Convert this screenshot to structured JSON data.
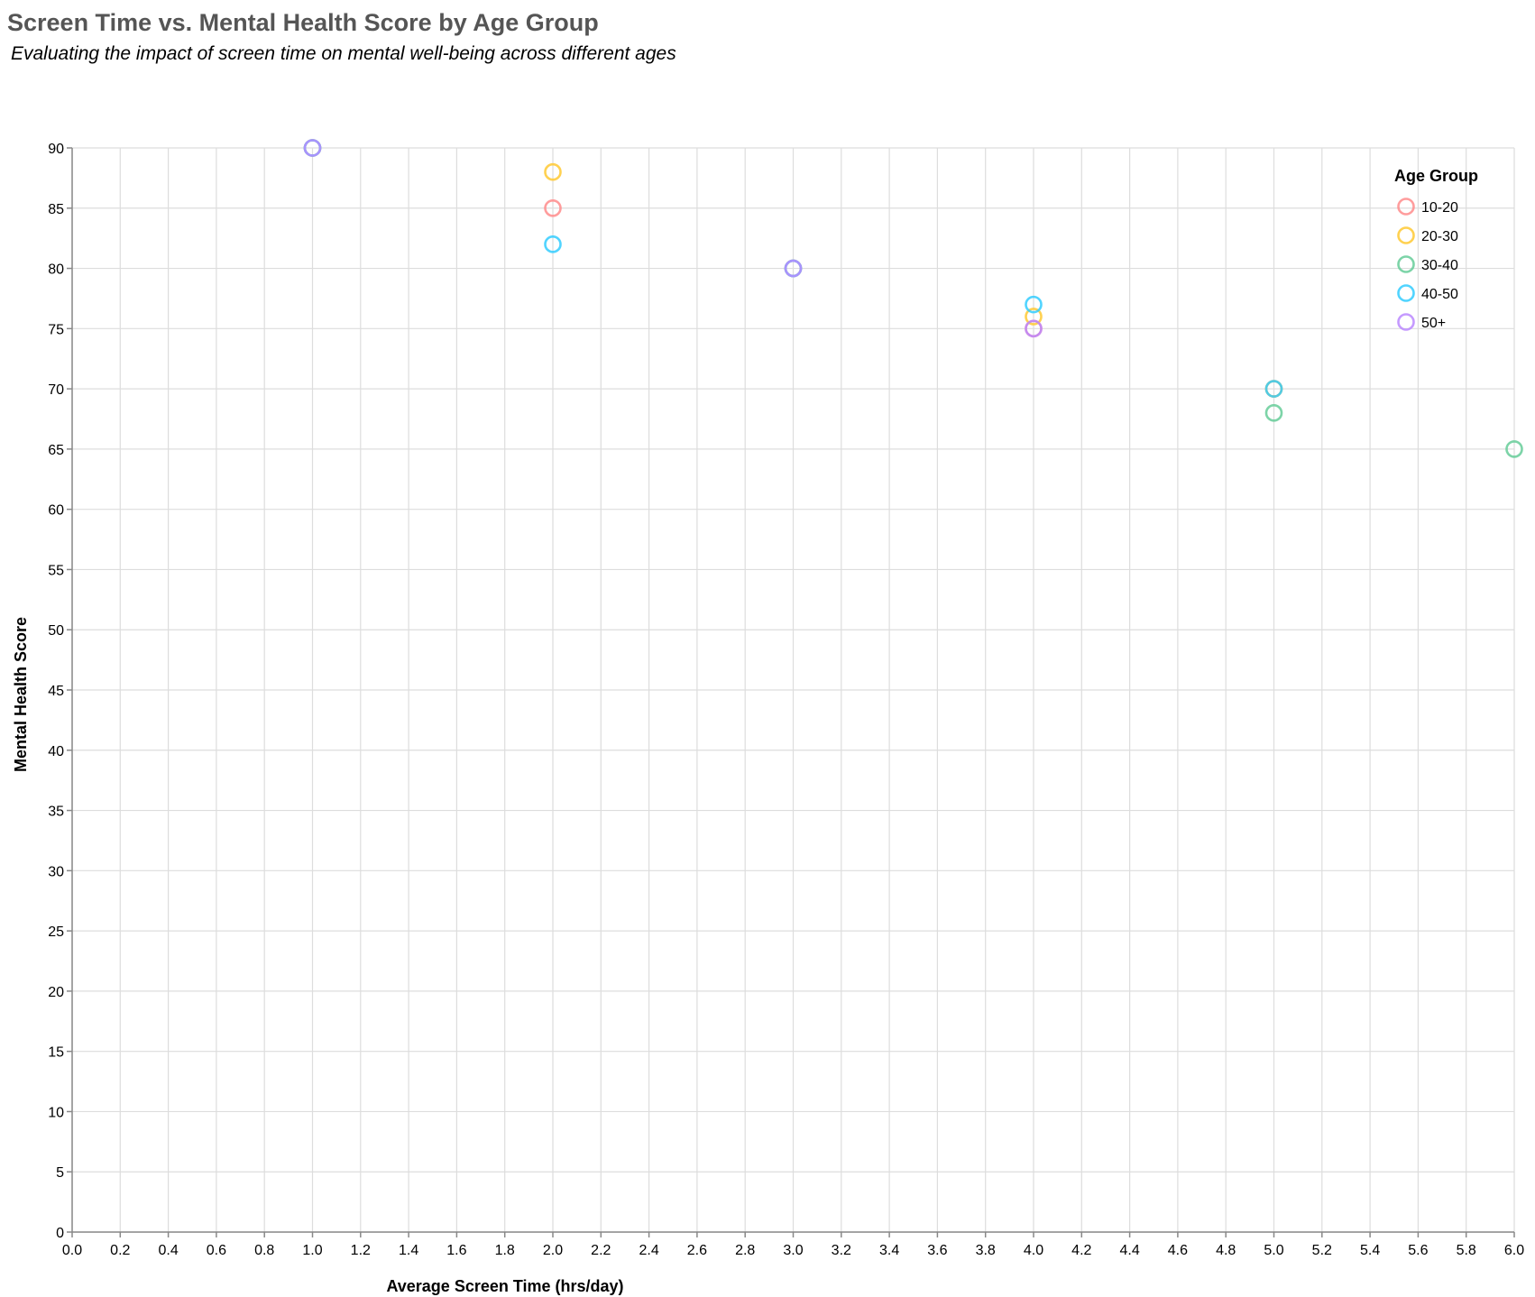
{
  "chart_data": {
    "type": "scatter",
    "title": "Screen Time vs. Mental Health Score by Age Group",
    "subtitle": "Evaluating the impact of screen time on mental well-being across different ages",
    "xlabel": "Average Screen Time (hrs/day)",
    "ylabel": "Mental Health Score",
    "xlim": [
      0,
      6
    ],
    "ylim": [
      0,
      90
    ],
    "x_ticks": [
      "0.0",
      "0.2",
      "0.4",
      "0.6",
      "0.8",
      "1.0",
      "1.2",
      "1.4",
      "1.6",
      "1.8",
      "2.0",
      "2.2",
      "2.4",
      "2.6",
      "2.8",
      "3.0",
      "3.2",
      "3.4",
      "3.6",
      "3.8",
      "4.0",
      "4.2",
      "4.4",
      "4.6",
      "4.8",
      "5.0",
      "5.2",
      "5.4",
      "5.6",
      "5.8",
      "6.0"
    ],
    "y_ticks": [
      "0",
      "5",
      "10",
      "15",
      "20",
      "25",
      "30",
      "35",
      "40",
      "45",
      "50",
      "55",
      "60",
      "65",
      "70",
      "75",
      "80",
      "85",
      "90"
    ],
    "grid": true,
    "legend_title": "Age Group",
    "legend_position": "top-right",
    "marker": "open-circle",
    "series": [
      {
        "name": "10-20",
        "color": "#ff8c8c",
        "points": [
          {
            "x": 1,
            "y": 90
          },
          {
            "x": 2,
            "y": 85
          },
          {
            "x": 3,
            "y": 80
          },
          {
            "x": 4,
            "y": 75
          },
          {
            "x": 5,
            "y": 70
          }
        ]
      },
      {
        "name": "20-30",
        "color": "#ffc933",
        "points": [
          {
            "x": 1,
            "y": 90
          },
          {
            "x": 2,
            "y": 88
          },
          {
            "x": 3,
            "y": 80
          },
          {
            "x": 4,
            "y": 76
          },
          {
            "x": 5,
            "y": 70
          }
        ]
      },
      {
        "name": "30-40",
        "color": "#66cc99",
        "points": [
          {
            "x": 1,
            "y": 90
          },
          {
            "x": 3,
            "y": 80
          },
          {
            "x": 5,
            "y": 68
          },
          {
            "x": 6,
            "y": 65
          }
        ]
      },
      {
        "name": "40-50",
        "color": "#33ccff",
        "points": [
          {
            "x": 1,
            "y": 90
          },
          {
            "x": 2,
            "y": 82
          },
          {
            "x": 3,
            "y": 80
          },
          {
            "x": 4,
            "y": 77
          },
          {
            "x": 5,
            "y": 70
          }
        ]
      },
      {
        "name": "50+",
        "color": "#bb88ff",
        "points": [
          {
            "x": 1,
            "y": 90
          },
          {
            "x": 3,
            "y": 80
          },
          {
            "x": 4,
            "y": 75
          }
        ]
      }
    ]
  }
}
